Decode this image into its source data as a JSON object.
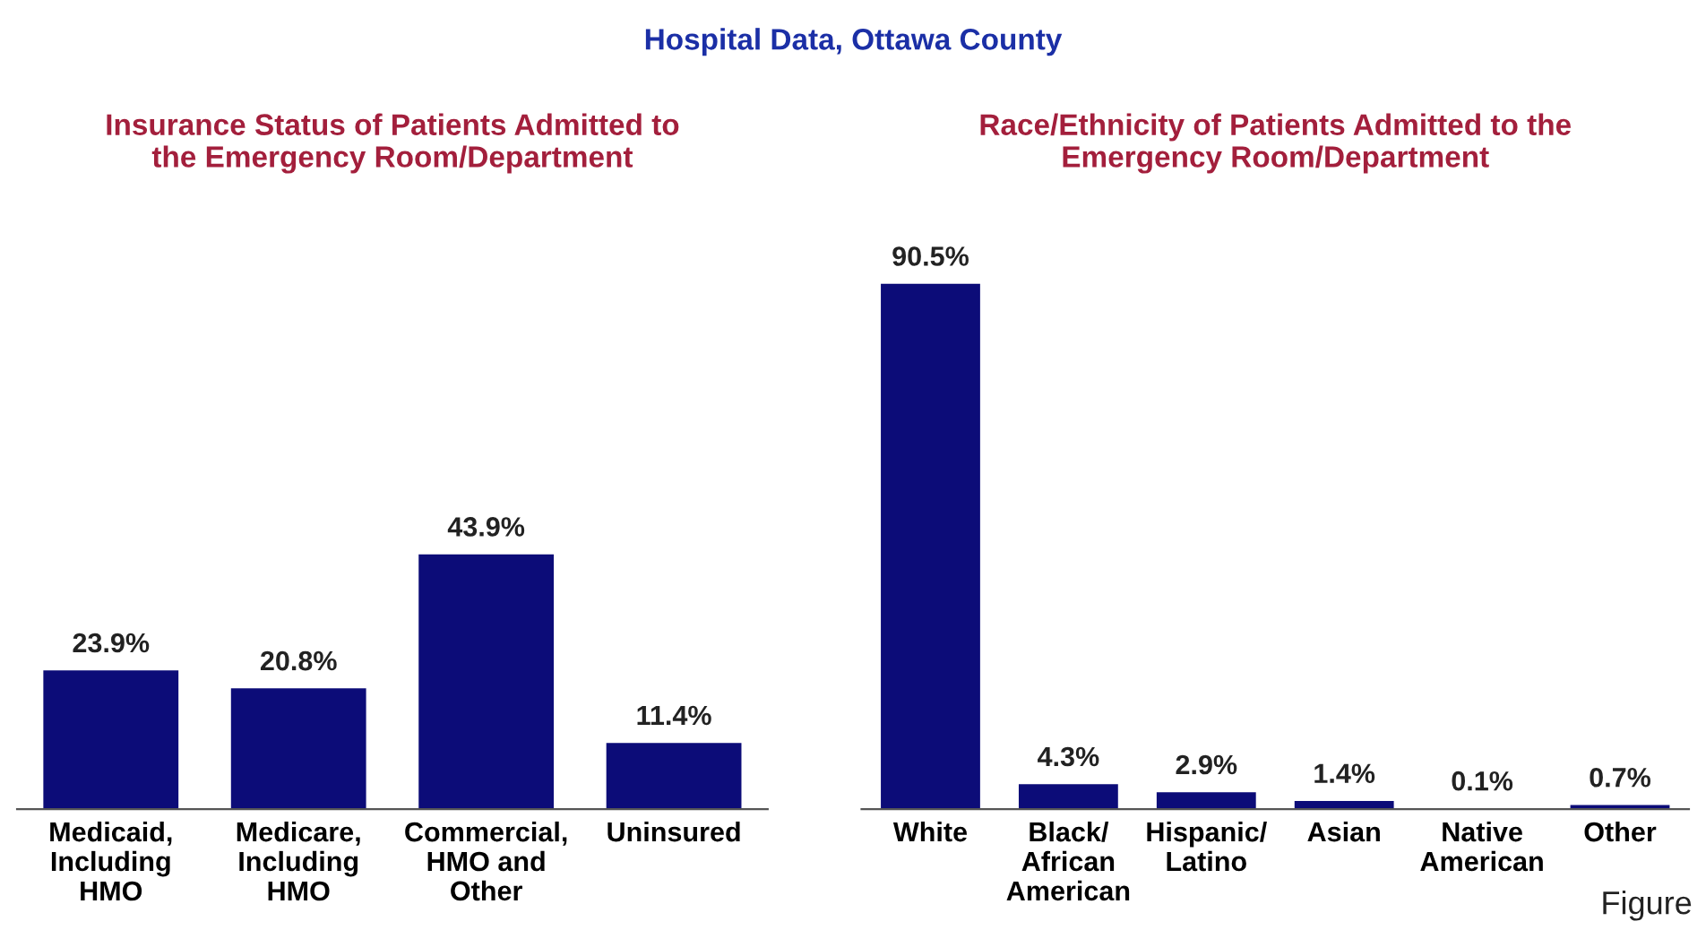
{
  "chart_data": [
    {
      "type": "bar",
      "title": "Insurance Status of Patients Admitted to\nthe Emergency Room/Department",
      "categories": [
        "Medicaid,\nIncluding\nHMO",
        "Medicare,\nIncluding\nHMO",
        "Commercial,\nHMO and\nOther",
        "Uninsured"
      ],
      "values": [
        23.9,
        20.8,
        43.9,
        11.4
      ],
      "value_labels": [
        "23.9%",
        "20.8%",
        "43.9%",
        "11.4%"
      ],
      "color": "#0c0c78",
      "annotations": [
        "Hospital Data, Ottawa County"
      ]
    },
    {
      "type": "bar",
      "title": "Race/Ethnicity of Patients Admitted to the\nEmergency Room/Department",
      "categories": [
        "White",
        "Black/\nAfrican\nAmerican",
        "Hispanic/\nLatino",
        "Asian",
        "Native\nAmerican",
        "Other"
      ],
      "values": [
        90.5,
        4.3,
        2.9,
        1.4,
        0.1,
        0.7
      ],
      "value_labels": [
        "90.5%",
        "4.3%",
        "2.9%",
        "1.4%",
        "0.1%",
        "0.7%"
      ],
      "color": "#0c0c78",
      "annotations": [
        "Figure"
      ]
    }
  ]
}
